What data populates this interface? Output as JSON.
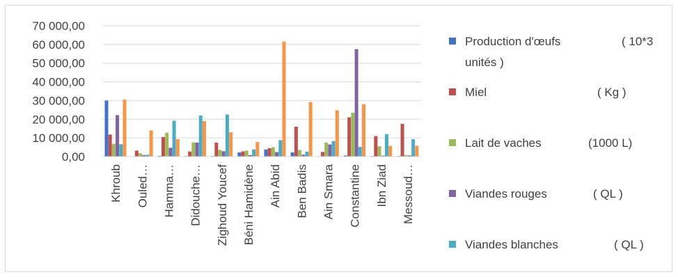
{
  "chart_data": {
    "type": "bar",
    "title": "",
    "xlabel": "",
    "ylabel": "",
    "ylim": [
      0,
      70000
    ],
    "yticks": [
      0,
      10000,
      20000,
      30000,
      40000,
      50000,
      60000,
      70000
    ],
    "ytick_labels": [
      "0,00",
      "10 000,00",
      "20 000,00",
      "30 000,00",
      "40 000,00",
      "50 000,00",
      "60 000,00",
      "70 000,00"
    ],
    "grid": true,
    "legend_position": "right",
    "categories": [
      "Khroub",
      "Ouled…",
      "Hamma…",
      "Didouche…",
      "Zighoud Youcef",
      "Béni Hamidène",
      "Ain Abid",
      "Ben Badis",
      "Ain Smara",
      "Constantine",
      "Ibn Ziad",
      "Messoud…"
    ],
    "series": [
      {
        "name": "Production d'œufs",
        "unit": "( 10*3 unités )",
        "color": "#4472C4",
        "values": [
          30000,
          200,
          400,
          300,
          300,
          2200,
          3800,
          2200,
          200,
          600,
          300,
          300
        ]
      },
      {
        "name": "Miel",
        "unit": "( Kg )",
        "color": "#C0504D",
        "values": [
          11800,
          3200,
          10500,
          2700,
          7500,
          2800,
          4500,
          16000,
          2500,
          21000,
          11000,
          17500
        ]
      },
      {
        "name": "Lait de  vaches",
        "unit": "(1000 L)",
        "color": "#9BBB59",
        "values": [
          6800,
          1800,
          12800,
          7600,
          3600,
          3200,
          5000,
          3500,
          7500,
          23500,
          5500,
          800
        ]
      },
      {
        "name": "Viandes rouges",
        "unit": "( QL )",
        "color": "#8064A2",
        "values": [
          22200,
          800,
          4700,
          7500,
          2900,
          800,
          2400,
          1000,
          6500,
          57500,
          500,
          600
        ]
      },
      {
        "name": "Viandes blanches",
        "unit": "( QL )",
        "color": "#4BACC6",
        "values": [
          6600,
          1000,
          19200,
          22000,
          22500,
          3800,
          8800,
          2600,
          8300,
          5200,
          12000,
          9300
        ]
      },
      {
        "name": "",
        "unit": "",
        "color": "#F79646",
        "values": [
          30500,
          14000,
          9300,
          19000,
          13000,
          7800,
          61500,
          29200,
          24800,
          28000,
          5700,
          5800
        ]
      }
    ]
  }
}
